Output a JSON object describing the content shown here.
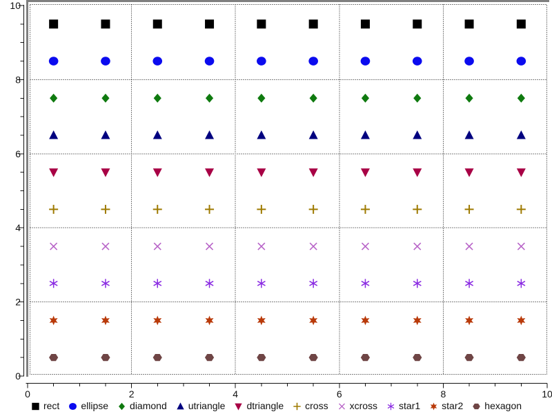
{
  "chart_data": {
    "type": "scatter",
    "title": "",
    "xlabel": "",
    "ylabel": "",
    "xlim": [
      0,
      10
    ],
    "ylim": [
      0,
      10
    ],
    "x_tick_labels": [
      "0",
      "2",
      "4",
      "6",
      "8",
      "10"
    ],
    "y_tick_labels": [
      "0",
      "2",
      "4",
      "6",
      "8",
      "10"
    ],
    "major_tick_step": 2,
    "minor_tick_step": 0.5,
    "grid": "dotted",
    "legend_position": "bottom",
    "x": [
      0.5,
      1.5,
      2.5,
      3.5,
      4.5,
      5.5,
      6.5,
      7.5,
      8.5,
      9.5
    ],
    "series": [
      {
        "name": "rect",
        "marker": "rect",
        "color": "#000000",
        "y": 9.5
      },
      {
        "name": "ellipse",
        "marker": "ellipse",
        "color": "#0b0bef",
        "y": 8.5
      },
      {
        "name": "diamond",
        "marker": "diamond",
        "color": "#0f7a0f",
        "y": 7.5
      },
      {
        "name": "utriangle",
        "marker": "utriangle",
        "color": "#00007f",
        "y": 6.5
      },
      {
        "name": "dtriangle",
        "marker": "dtriangle",
        "color": "#a80045",
        "y": 5.5
      },
      {
        "name": "cross",
        "marker": "cross",
        "color": "#9e7a00",
        "y": 4.5
      },
      {
        "name": "xcross",
        "marker": "xcross",
        "color": "#b864c8",
        "y": 3.5
      },
      {
        "name": "star1",
        "marker": "star1",
        "color": "#8a2be2",
        "y": 2.5
      },
      {
        "name": "star2",
        "marker": "star2",
        "color": "#b93a0a",
        "y": 1.5
      },
      {
        "name": "hexagon",
        "marker": "hexagon",
        "color": "#6f4545",
        "y": 0.5
      }
    ],
    "colors": {
      "background": "#ffffff",
      "bevel": "#7f7f7f",
      "grid": "#000000",
      "axis": "#111111"
    }
  }
}
